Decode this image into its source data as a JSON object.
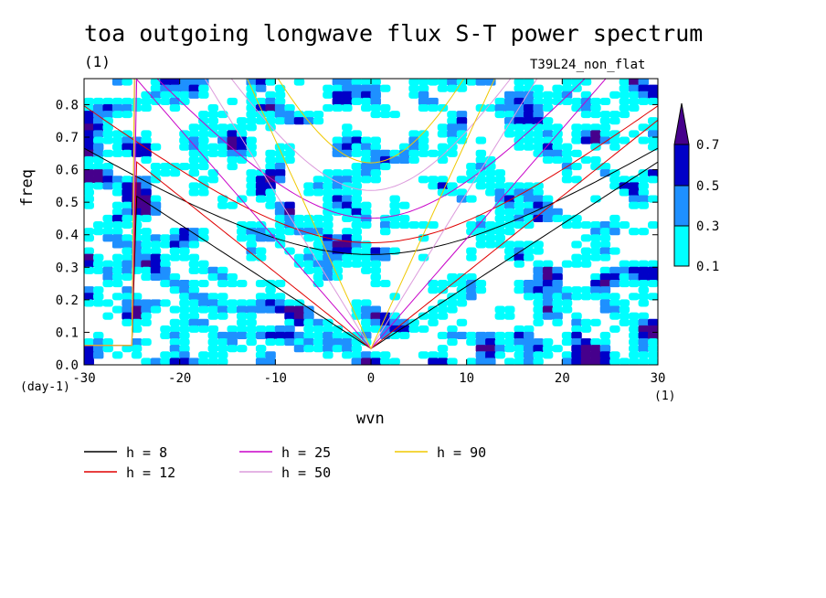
{
  "chart_data": {
    "type": "heatmap",
    "title": "toa outgoing longwave flux S-T power spectrum",
    "subtitle_left": "(1)",
    "subtitle_right": "T39L24_non_flat",
    "xlabel": "wvn",
    "ylabel": "freq",
    "x_unit": "(1)",
    "y_unit": "(day-1)",
    "xlim": [
      -30,
      30
    ],
    "ylim": [
      0,
      0.88
    ],
    "x_ticks": [
      -30,
      -20,
      -10,
      0,
      10,
      20,
      30
    ],
    "y_ticks": [
      0.0,
      0.1,
      0.2,
      0.3,
      0.4,
      0.5,
      0.6,
      0.7,
      0.8
    ],
    "colorbar": {
      "levels": [
        0.1,
        0.3,
        0.5,
        0.7
      ],
      "colors": [
        "#00ffff",
        "#1e90ff",
        "#0000c8",
        "#46008c"
      ],
      "extend": "max"
    },
    "dispersion_curves": [
      {
        "label": "h =  8",
        "h": 8,
        "color": "#000000"
      },
      {
        "label": "h = 12",
        "h": 12,
        "color": "#e00000"
      },
      {
        "label": "h = 25",
        "h": 25,
        "color": "#c800c8"
      },
      {
        "label": "h = 50",
        "h": 50,
        "color": "#dc9bdc"
      },
      {
        "label": "h = 90",
        "h": 90,
        "color": "#f0c800"
      }
    ]
  }
}
